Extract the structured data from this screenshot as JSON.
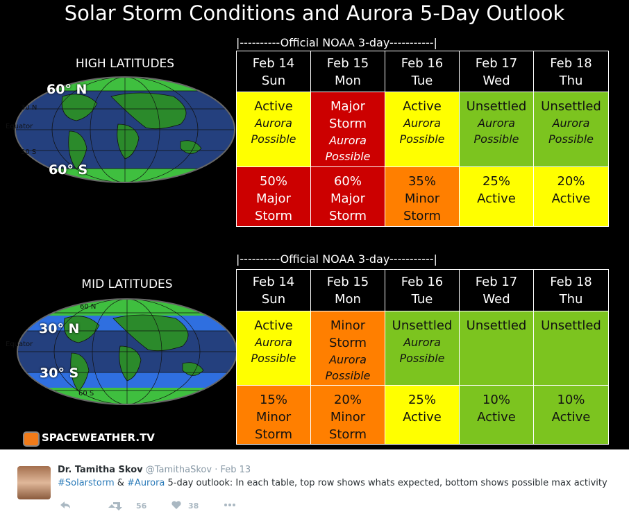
{
  "image": {
    "title": "Solar Storm Conditions and Aurora 5-Day Outlook",
    "logo": "SPACEWEATHER.TV",
    "sections": [
      {
        "label": "HIGH LATITUDES",
        "map_labels": [
          "60° N",
          "30 N",
          "Equator",
          "30 S",
          "60° S"
        ],
        "noaa": "|----------Official NOAA 3-day-----------|",
        "days": [
          {
            "date": "Feb 14",
            "weekday": "Sun"
          },
          {
            "date": "Feb 15",
            "weekday": "Mon"
          },
          {
            "date": "Feb 16",
            "weekday": "Tue"
          },
          {
            "date": "Feb 17",
            "weekday": "Wed"
          },
          {
            "date": "Feb 18",
            "weekday": "Thu"
          }
        ],
        "rows": [
          [
            {
              "fill": "#ffff00",
              "text": [
                "Active"
              ],
              "note": [
                "Aurora",
                "Possible"
              ]
            },
            {
              "fill": "#cc0000",
              "text": [
                "Major",
                "Storm"
              ],
              "note": [
                "Aurora",
                "Possible"
              ]
            },
            {
              "fill": "#ffff00",
              "text": [
                "Active"
              ],
              "note": [
                "Aurora",
                "Possible"
              ]
            },
            {
              "fill": "#7cc41f",
              "text": [
                "Unsettled"
              ],
              "note": [
                "Aurora",
                "Possible"
              ]
            },
            {
              "fill": "#7cc41f",
              "text": [
                "Unsettled"
              ],
              "note": [
                "Aurora",
                "Possible"
              ]
            }
          ],
          [
            {
              "fill": "#cc0000",
              "text": [
                "50%",
                "Major",
                "Storm"
              ]
            },
            {
              "fill": "#cc0000",
              "text": [
                "60%",
                "Major",
                "Storm"
              ]
            },
            {
              "fill": "#ff7f00",
              "text": [
                "35%",
                "Minor",
                "Storm"
              ]
            },
            {
              "fill": "#ffff00",
              "text": [
                "25%",
                "Active"
              ]
            },
            {
              "fill": "#ffff00",
              "text": [
                "20%",
                "Active"
              ]
            }
          ]
        ]
      },
      {
        "label": "MID LATITUDES",
        "map_labels": [
          "60 N",
          "30° N",
          "Equator",
          "30° S",
          "60 S"
        ],
        "noaa": "|----------Official NOAA 3-day-----------|",
        "days": [
          {
            "date": "Feb 14",
            "weekday": "Sun"
          },
          {
            "date": "Feb 15",
            "weekday": "Mon"
          },
          {
            "date": "Feb 16",
            "weekday": "Tue"
          },
          {
            "date": "Feb 17",
            "weekday": "Wed"
          },
          {
            "date": "Feb 18",
            "weekday": "Thu"
          }
        ],
        "rows": [
          [
            {
              "fill": "#ffff00",
              "text": [
                "Active"
              ],
              "note": [
                "Aurora",
                "Possible"
              ]
            },
            {
              "fill": "#ff7f00",
              "text": [
                "Minor",
                "Storm"
              ],
              "note": [
                "Aurora",
                "Possible"
              ]
            },
            {
              "fill": "#7cc41f",
              "text": [
                "Unsettled"
              ],
              "note": [
                "Aurora",
                "Possible"
              ]
            },
            {
              "fill": "#7cc41f",
              "text": [
                "Unsettled"
              ]
            },
            {
              "fill": "#7cc41f",
              "text": [
                "Unsettled"
              ]
            }
          ],
          [
            {
              "fill": "#ff7f00",
              "text": [
                "15%",
                "Minor",
                "Storm"
              ]
            },
            {
              "fill": "#ff7f00",
              "text": [
                "20%",
                "Minor",
                "Storm"
              ]
            },
            {
              "fill": "#ffff00",
              "text": [
                "25%",
                "Active"
              ]
            },
            {
              "fill": "#7cc41f",
              "text": [
                "10%",
                "Active"
              ]
            },
            {
              "fill": "#7cc41f",
              "text": [
                "10%",
                "Active"
              ]
            }
          ]
        ]
      }
    ]
  },
  "tweet": {
    "name": "Dr. Tamitha Skov",
    "handle": "@TamithaSkov",
    "date": "· Feb 13",
    "text": [
      {
        "text": "#Solarstorm",
        "link": true
      },
      {
        "text": " & ",
        "link": false
      },
      {
        "text": "#Aurora",
        "link": true
      },
      {
        "text": " 5-day outlook: In each table, top row shows whats expected, bottom shows possible max activity",
        "link": false
      }
    ],
    "retweets": "56",
    "likes": "38"
  }
}
